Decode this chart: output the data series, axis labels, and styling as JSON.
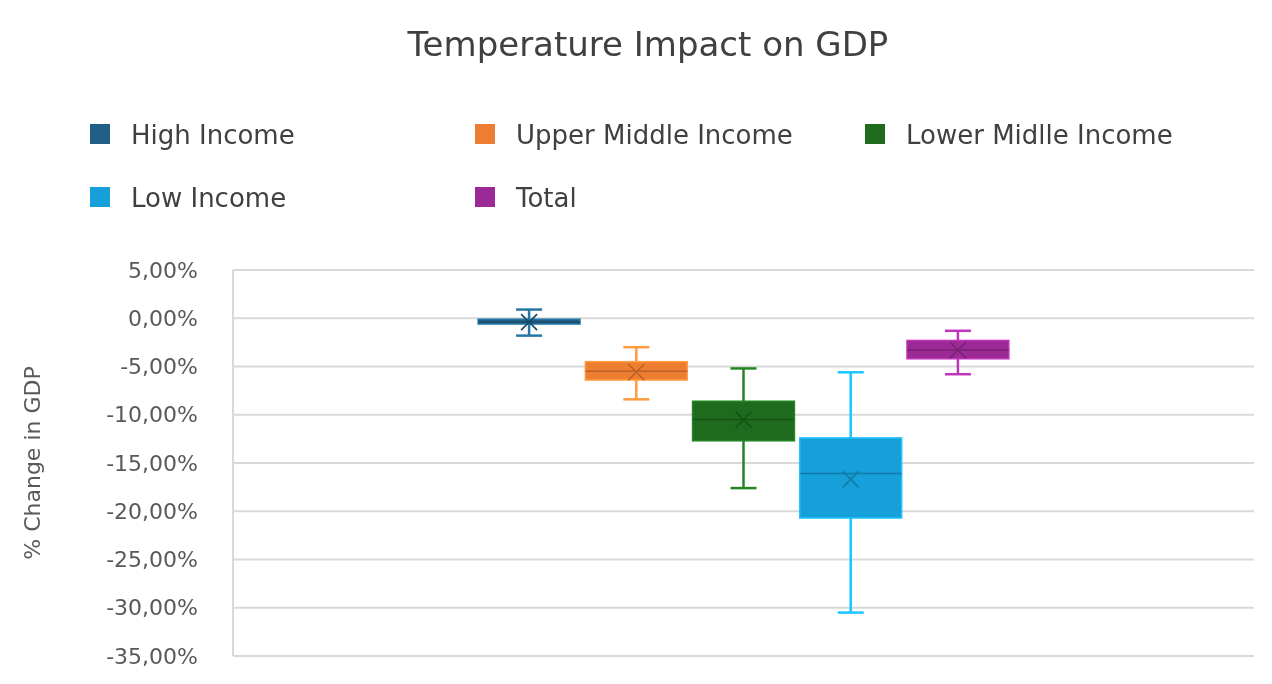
{
  "chart_data": {
    "type": "box",
    "title": "Temperature Impact on GDP",
    "ylabel": "% Change in GDP",
    "categories": [
      null
    ],
    "series": [
      {
        "name": "High Income",
        "color": "#1f5f85",
        "boxes": [
          {
            "low": -1.8,
            "q1": -0.6,
            "median": -0.4,
            "q3": -0.1,
            "high": 0.9,
            "mean": -0.4
          }
        ]
      },
      {
        "name": "Upper Middle Income",
        "color": "#ed7d31",
        "boxes": [
          {
            "low": -8.4,
            "q1": -6.4,
            "median": -5.5,
            "q3": -4.5,
            "high": -3.0,
            "mean": -5.6
          }
        ]
      },
      {
        "name": "Lower Midlle Income",
        "color": "#1e6b1e",
        "boxes": [
          {
            "low": -17.6,
            "q1": -12.7,
            "median": -10.5,
            "q3": -8.6,
            "high": -5.2,
            "mean": -10.5
          }
        ]
      },
      {
        "name": "Low Income",
        "color": "#169fd8",
        "boxes": [
          {
            "low": -30.5,
            "q1": -20.7,
            "median": -16.1,
            "q3": -12.4,
            "high": -5.6,
            "mean": -16.7
          }
        ]
      },
      {
        "name": "Total",
        "color": "#9b2a96",
        "boxes": [
          {
            "low": -5.8,
            "q1": -4.2,
            "median": -3.3,
            "q3": -2.3,
            "high": -1.3,
            "mean": -3.3
          }
        ]
      }
    ],
    "ylim": [
      -35,
      5
    ],
    "yticks": [
      {
        "value": 5,
        "label": "5,00%"
      },
      {
        "value": 0,
        "label": "0,00%"
      },
      {
        "value": -5,
        "label": "-5,00%"
      },
      {
        "value": -10,
        "label": "-10,00%"
      },
      {
        "value": -15,
        "label": "-15,00%"
      },
      {
        "value": -20,
        "label": "-20,00%"
      },
      {
        "value": -25,
        "label": "-25,00%"
      },
      {
        "value": -30,
        "label": "-30,00%"
      },
      {
        "value": -35,
        "label": "-35,00%"
      }
    ],
    "grid": "y",
    "legend": "top",
    "marker": "cross"
  }
}
